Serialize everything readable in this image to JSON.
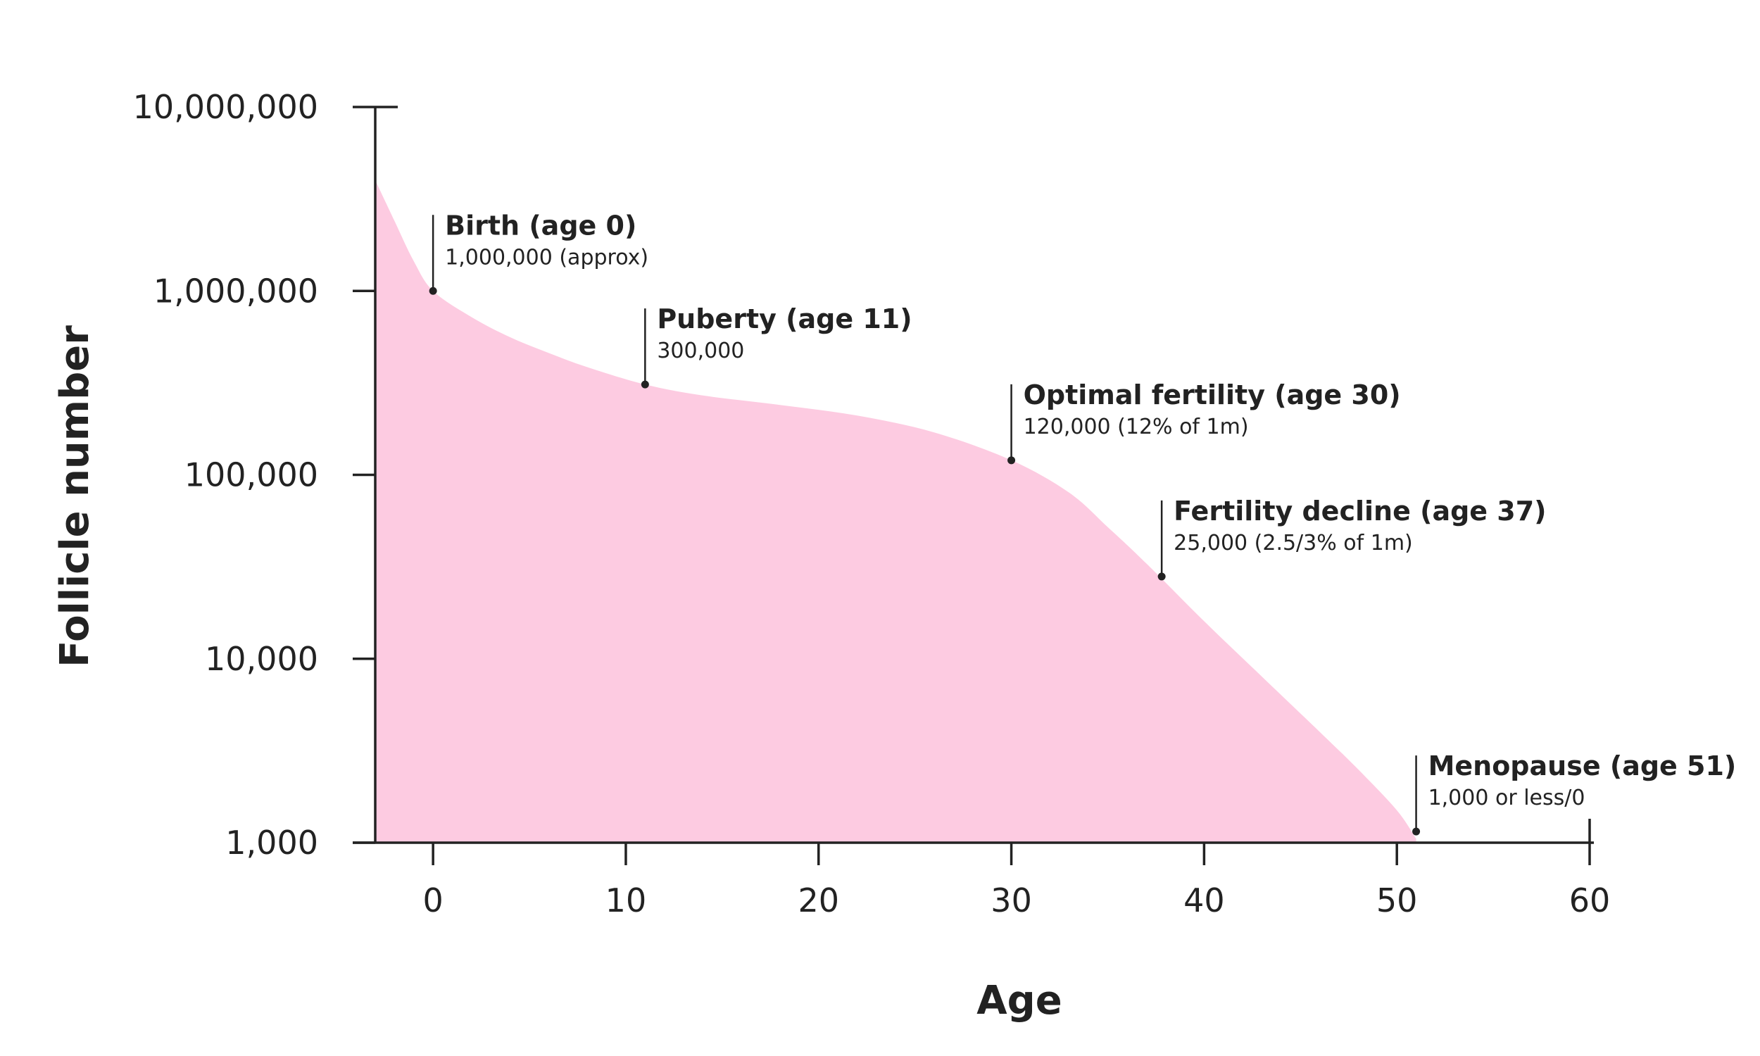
{
  "chart_data": {
    "type": "area",
    "xlabel": "Age",
    "ylabel": "Follicle number",
    "xlim": [
      -3,
      60
    ],
    "ylim": [
      1000,
      10000000
    ],
    "yscale": "log",
    "x_ticks": [
      0,
      10,
      20,
      30,
      40,
      50,
      60
    ],
    "x_tick_labels": [
      "0",
      "10",
      "20",
      "30",
      "40",
      "50",
      "60"
    ],
    "y_ticks": [
      1000,
      10000,
      100000,
      1000000,
      10000000
    ],
    "y_tick_labels": [
      "1,000",
      "10,000",
      "100,000",
      "1,000,000",
      "10,000,000"
    ],
    "fill_color": "#fdcbe1",
    "grid": false,
    "series": [
      {
        "x": [
          -3,
          -2,
          -1,
          0,
          2,
          4,
          6,
          8,
          11,
          14,
          18,
          22,
          26,
          30,
          33,
          35,
          37,
          40,
          43,
          46,
          48,
          50,
          51
        ],
        "y": [
          4000000,
          2400000,
          1450000,
          1000000,
          720000,
          560000,
          460000,
          385000,
          310000,
          270000,
          240000,
          210000,
          170000,
          120000,
          80000,
          52000,
          33000,
          16000,
          8000,
          4000,
          2500,
          1500,
          1050
        ]
      }
    ],
    "annotations": [
      {
        "x": 0,
        "y": 1000000,
        "title": "Birth (age 0)",
        "subtitle": "1,000,000 (approx)"
      },
      {
        "x": 11,
        "y": 310000,
        "title": "Puberty (age 11)",
        "subtitle": "300,000"
      },
      {
        "x": 30,
        "y": 120000,
        "title": "Optimal fertility (age 30)",
        "subtitle": "120,000 (12% of 1m)"
      },
      {
        "x": 37.8,
        "y": 28000,
        "title": "Fertility decline (age 37)",
        "subtitle": "25,000 (2.5/3% of 1m)"
      },
      {
        "x": 51,
        "y": 1150,
        "title": "Menopause (age 51)",
        "subtitle": "1,000 or less/0"
      }
    ]
  }
}
